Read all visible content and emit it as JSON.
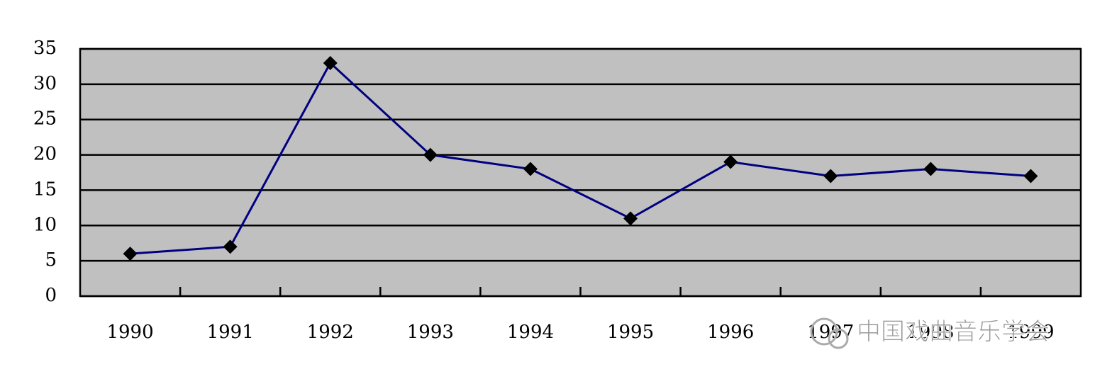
{
  "chart_data": {
    "type": "line",
    "categories": [
      "1990",
      "1991",
      "1992",
      "1993",
      "1994",
      "1995",
      "1996",
      "1997",
      "1998",
      "1999"
    ],
    "values": [
      6,
      7,
      33,
      20,
      18,
      11,
      19,
      17,
      18,
      17
    ],
    "color": "#000080",
    "marker_color": "#000000",
    "plot_background": "#c0c0c0",
    "ylim": [
      0,
      35
    ],
    "yticks": [
      0,
      5,
      10,
      15,
      20,
      25,
      30,
      35
    ],
    "grid": true,
    "watermark": "中国戏曲音乐学会"
  }
}
